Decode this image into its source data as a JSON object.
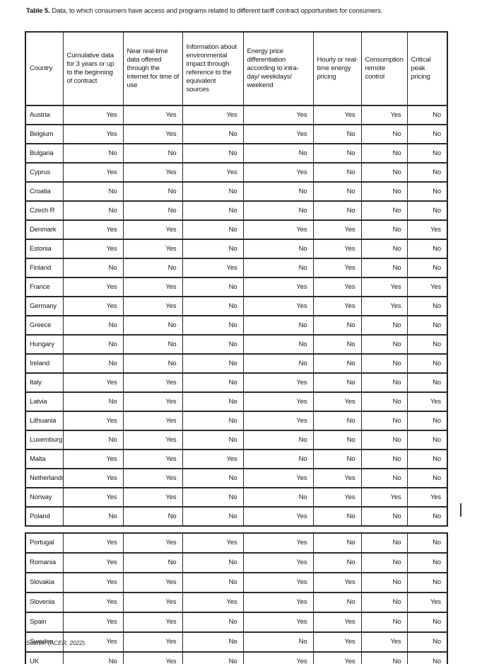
{
  "title": {
    "label": "Table 5.",
    "text": "Data, to which consumers have access and programs related to different tariff contract opportunities for consumers."
  },
  "source": "Source: (ACER, 2022).",
  "table": {
    "columns": [
      "Country",
      "Cumulative data for 3 years or up to the beginning of contract",
      "Near real-time data offered through the internet for time of use",
      "Information about environmental impact through reference to the equivalent sources",
      "Energy price differentiation according to intra-day/ weekdays/ weekend",
      "Hourly or real-time energy pricing",
      "Consumption remote control",
      "Critical peak pricing"
    ],
    "block1": [
      {
        "country": "Austria",
        "values": [
          "Yes",
          "Yes",
          "Yes",
          "Yes",
          "Yes",
          "Yes",
          "No"
        ]
      },
      {
        "country": "Belgium",
        "values": [
          "Yes",
          "Yes",
          "No",
          "Yes",
          "No",
          "No",
          "No"
        ]
      },
      {
        "country": "Bulgaria",
        "values": [
          "No",
          "No",
          "No",
          "No",
          "No",
          "No",
          "No"
        ]
      },
      {
        "country": "Cyprus",
        "values": [
          "Yes",
          "Yes",
          "Yes",
          "Yes",
          "No",
          "No",
          "No"
        ]
      },
      {
        "country": "Croatia",
        "values": [
          "No",
          "No",
          "No",
          "No",
          "No",
          "No",
          "No"
        ]
      },
      {
        "country": "Czech R",
        "values": [
          "No",
          "No",
          "No",
          "No",
          "No",
          "No",
          "No"
        ]
      },
      {
        "country": "Denmark",
        "values": [
          "Yes",
          "Yes",
          "No",
          "Yes",
          "Yes",
          "No",
          "Yes"
        ]
      },
      {
        "country": "Estonia",
        "values": [
          "Yes",
          "Yes",
          "No",
          "No",
          "Yes",
          "No",
          "No"
        ]
      },
      {
        "country": "Finland",
        "values": [
          "No",
          "No",
          "Yes",
          "No",
          "Yes",
          "No",
          "No"
        ]
      },
      {
        "country": "France",
        "values": [
          "Yes",
          "Yes",
          "No",
          "Yes",
          "Yes",
          "Yes",
          "Yes"
        ]
      },
      {
        "country": "Germany",
        "values": [
          "Yes",
          "Yes",
          "No",
          "Yes",
          "Yes",
          "Yes",
          "No"
        ]
      },
      {
        "country": "Greece",
        "values": [
          "No",
          "No",
          "No",
          "No",
          "No",
          "No",
          "No"
        ]
      },
      {
        "country": "Hungary",
        "values": [
          "No",
          "No",
          "No",
          "No",
          "No",
          "No",
          "No"
        ]
      },
      {
        "country": "Ireland",
        "values": [
          "No",
          "No",
          "No",
          "No",
          "No",
          "No",
          "No"
        ]
      },
      {
        "country": "Italy",
        "values": [
          "Yes",
          "Yes",
          "No",
          "Yes",
          "No",
          "No",
          "No"
        ]
      },
      {
        "country": "Latvia",
        "values": [
          "No",
          "Yes",
          "No",
          "Yes",
          "Yes",
          "No",
          "Yes"
        ]
      },
      {
        "country": "Lithuania",
        "values": [
          "Yes",
          "Yes",
          "No",
          "Yes",
          "No",
          "No",
          "No"
        ]
      },
      {
        "country": "Luxemburg",
        "values": [
          "No",
          "Yes",
          "No",
          "No",
          "No",
          "No",
          "No"
        ]
      },
      {
        "country": "Malta",
        "values": [
          "Yes",
          "Yes",
          "Yes",
          "No",
          "No",
          "No",
          "No"
        ]
      },
      {
        "country": "Netherlands",
        "values": [
          "Yes",
          "Yes",
          "No",
          "Yes",
          "Yes",
          "No",
          "No"
        ]
      },
      {
        "country": "Norway",
        "values": [
          "Yes",
          "Yes",
          "No",
          "No",
          "Yes",
          "Yes",
          "Yes"
        ]
      },
      {
        "country": "Poland",
        "values": [
          "No",
          "No",
          "No",
          "Yes",
          "No",
          "No",
          "No"
        ]
      }
    ],
    "block2": [
      {
        "country": "Portugal",
        "values": [
          "Yes",
          "Yes",
          "Yes",
          "Yes",
          "No",
          "No",
          "No"
        ]
      },
      {
        "country": "Romania",
        "values": [
          "Yes",
          "No",
          "No",
          "Yes",
          "No",
          "No",
          "No"
        ]
      },
      {
        "country": "Slovakia",
        "values": [
          "Yes",
          "Yes",
          "No",
          "Yes",
          "Yes",
          "No",
          "No"
        ]
      },
      {
        "country": "Slovenia",
        "values": [
          "Yes",
          "Yes",
          "Yes",
          "Yes",
          "No",
          "No",
          "Yes"
        ]
      },
      {
        "country": "Spain",
        "values": [
          "Yes",
          "Yes",
          "No",
          "Yes",
          "Yes",
          "No",
          "No"
        ]
      },
      {
        "country": "Sweden",
        "values": [
          "Yes",
          "Yes",
          "No",
          "No",
          "Yes",
          "Yes",
          "No"
        ]
      },
      {
        "country": "UK",
        "values": [
          "No",
          "Yes",
          "No",
          "Yes",
          "Yes",
          "No",
          "No"
        ]
      }
    ]
  }
}
